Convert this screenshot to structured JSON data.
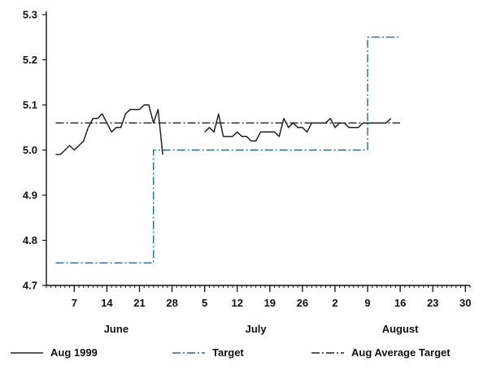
{
  "chart_data": {
    "type": "line",
    "title": "",
    "xlabel": "",
    "ylabel": "",
    "ylim": [
      4.7,
      5.3
    ],
    "yticks": [
      4.7,
      4.8,
      4.9,
      5.0,
      5.1,
      5.2,
      5.3
    ],
    "x_range": [
      "1999-06-01",
      "1999-08-31"
    ],
    "xtick_labels": [
      {
        "date": "1999-06-07",
        "label": "7"
      },
      {
        "date": "1999-06-14",
        "label": "14"
      },
      {
        "date": "1999-06-21",
        "label": "21"
      },
      {
        "date": "1999-06-28",
        "label": "28"
      },
      {
        "date": "1999-07-05",
        "label": "5"
      },
      {
        "date": "1999-07-12",
        "label": "12"
      },
      {
        "date": "1999-07-19",
        "label": "19"
      },
      {
        "date": "1999-07-26",
        "label": "26"
      },
      {
        "date": "1999-08-02",
        "label": "2"
      },
      {
        "date": "1999-08-09",
        "label": "9"
      },
      {
        "date": "1999-08-16",
        "label": "16"
      },
      {
        "date": "1999-08-23",
        "label": "23"
      },
      {
        "date": "1999-08-30",
        "label": "30"
      }
    ],
    "month_labels": [
      {
        "date": "1999-06-16",
        "label": "June"
      },
      {
        "date": "1999-07-16",
        "label": "July"
      },
      {
        "date": "1999-08-16",
        "label": "August"
      }
    ],
    "legend_position": "bottom",
    "series": [
      {
        "name": "Aug 1999",
        "color": "#222222",
        "style": "solid",
        "segments": [
          [
            [
              "1999-06-03",
              4.99
            ],
            [
              "1999-06-04",
              4.99
            ],
            [
              "1999-06-05",
              5.0
            ],
            [
              "1999-06-06",
              5.01
            ],
            [
              "1999-06-07",
              5.0
            ],
            [
              "1999-06-08",
              5.01
            ],
            [
              "1999-06-09",
              5.02
            ],
            [
              "1999-06-10",
              5.05
            ],
            [
              "1999-06-11",
              5.07
            ],
            [
              "1999-06-12",
              5.07
            ],
            [
              "1999-06-13",
              5.08
            ],
            [
              "1999-06-14",
              5.06
            ],
            [
              "1999-06-15",
              5.04
            ],
            [
              "1999-06-16",
              5.05
            ],
            [
              "1999-06-17",
              5.05
            ],
            [
              "1999-06-18",
              5.08
            ],
            [
              "1999-06-19",
              5.09
            ],
            [
              "1999-06-20",
              5.09
            ],
            [
              "1999-06-21",
              5.09
            ],
            [
              "1999-06-22",
              5.1
            ],
            [
              "1999-06-23",
              5.1
            ],
            [
              "1999-06-24",
              5.06
            ],
            [
              "1999-06-25",
              5.09
            ],
            [
              "1999-06-26",
              4.99
            ]
          ],
          [
            [
              "1999-07-05",
              5.04
            ],
            [
              "1999-07-06",
              5.05
            ],
            [
              "1999-07-07",
              5.04
            ],
            [
              "1999-07-08",
              5.08
            ],
            [
              "1999-07-09",
              5.03
            ],
            [
              "1999-07-10",
              5.03
            ],
            [
              "1999-07-11",
              5.03
            ],
            [
              "1999-07-12",
              5.04
            ],
            [
              "1999-07-13",
              5.03
            ],
            [
              "1999-07-14",
              5.03
            ],
            [
              "1999-07-15",
              5.02
            ],
            [
              "1999-07-16",
              5.02
            ],
            [
              "1999-07-17",
              5.04
            ],
            [
              "1999-07-18",
              5.04
            ],
            [
              "1999-07-19",
              5.04
            ],
            [
              "1999-07-20",
              5.04
            ],
            [
              "1999-07-21",
              5.03
            ],
            [
              "1999-07-22",
              5.07
            ],
            [
              "1999-07-23",
              5.05
            ],
            [
              "1999-07-24",
              5.06
            ],
            [
              "1999-07-25",
              5.05
            ],
            [
              "1999-07-26",
              5.05
            ],
            [
              "1999-07-27",
              5.04
            ],
            [
              "1999-07-28",
              5.06
            ],
            [
              "1999-07-29",
              5.06
            ],
            [
              "1999-07-30",
              5.06
            ],
            [
              "1999-07-31",
              5.06
            ],
            [
              "1999-08-01",
              5.07
            ],
            [
              "1999-08-02",
              5.05
            ],
            [
              "1999-08-03",
              5.06
            ],
            [
              "1999-08-04",
              5.06
            ],
            [
              "1999-08-05",
              5.05
            ],
            [
              "1999-08-06",
              5.05
            ],
            [
              "1999-08-07",
              5.05
            ],
            [
              "1999-08-08",
              5.06
            ],
            [
              "1999-08-09",
              5.06
            ],
            [
              "1999-08-10",
              5.06
            ],
            [
              "1999-08-11",
              5.06
            ],
            [
              "1999-08-12",
              5.06
            ],
            [
              "1999-08-13",
              5.06
            ],
            [
              "1999-08-14",
              5.07
            ]
          ]
        ]
      },
      {
        "name": "Target",
        "color": "#1a6e9e",
        "style": "dashdot",
        "segments": [
          [
            [
              "1999-06-03",
              4.75
            ],
            [
              "1999-06-24",
              4.75
            ],
            [
              "1999-06-24",
              5.0
            ],
            [
              "1999-08-09",
              5.0
            ],
            [
              "1999-08-09",
              5.25
            ],
            [
              "1999-08-16",
              5.25
            ]
          ]
        ]
      },
      {
        "name": "Aug Average Target",
        "color": "#222222",
        "style": "dashdot",
        "segments": [
          [
            [
              "1999-06-03",
              5.06
            ],
            [
              "1999-08-16",
              5.06
            ]
          ]
        ]
      }
    ]
  }
}
